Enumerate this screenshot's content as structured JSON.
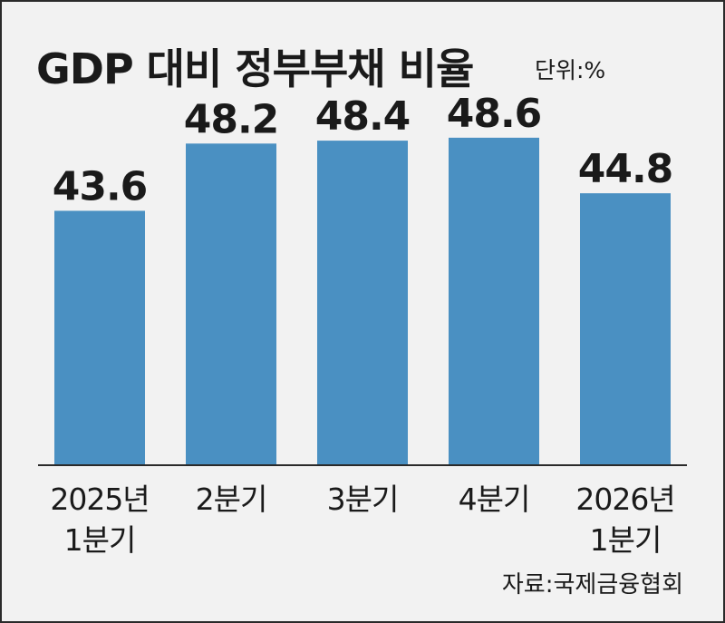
{
  "chart_data": {
    "type": "bar",
    "title": "GDP 대비 정부부채 비율",
    "unit": "단위:%",
    "source": "자료:국제금융협회",
    "categories": [
      [
        "2025년",
        "1분기"
      ],
      [
        "2분기"
      ],
      [
        "3분기"
      ],
      [
        "4분기"
      ],
      [
        "2026년",
        "1분기"
      ]
    ],
    "values": [
      43.6,
      48.2,
      48.4,
      48.6,
      44.8
    ],
    "value_labels": [
      "43.6",
      "48.2",
      "48.4",
      "48.6",
      "44.8"
    ],
    "colors": {
      "bar": "#4a90c2",
      "background": "#f2f2f2"
    },
    "grid": false,
    "legend": "none"
  }
}
